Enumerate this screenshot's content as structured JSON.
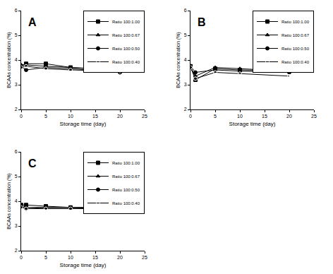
{
  "chart_data": [
    {
      "type": "line",
      "title": "A",
      "x_label": "Storage time (day)",
      "y_label": "BCAAs concentration (%)",
      "x": [
        0,
        1,
        5,
        10,
        20
      ],
      "series": [
        {
          "name": "Ratio 100:1.00",
          "color": "#000000",
          "marker": "square",
          "values": [
            3.75,
            3.85,
            3.85,
            3.7,
            3.55
          ]
        },
        {
          "name": "Ratio 100:0.67",
          "color": "#000000",
          "marker": "triangle-up",
          "values": [
            3.8,
            3.8,
            3.75,
            3.7,
            3.6
          ]
        },
        {
          "name": "Ratio 100:0.50",
          "color": "#000000",
          "marker": "circle",
          "values": [
            3.75,
            3.6,
            3.7,
            3.65,
            3.5
          ]
        },
        {
          "name": "Ratio 100:0.40",
          "color": "#000000",
          "marker": "circle-open",
          "values": [
            3.7,
            3.75,
            3.65,
            3.6,
            3.55
          ]
        }
      ],
      "xlim": [
        0,
        25
      ],
      "xticks": [
        0,
        5,
        10,
        15,
        20,
        25
      ],
      "ylim": [
        2,
        6
      ],
      "yticks": [
        2,
        3,
        4,
        5,
        6
      ],
      "grid": false,
      "legend": "upper right"
    },
    {
      "type": "line",
      "title": "B",
      "x_label": "Storage time (day)",
      "y_label": "BCAAs concentration (%)",
      "x": [
        0,
        1,
        5,
        10,
        20
      ],
      "series": [
        {
          "name": "Ratio 100:1.00",
          "color": "#000000",
          "marker": "square",
          "values": [
            3.75,
            3.2,
            3.65,
            3.6,
            3.55
          ]
        },
        {
          "name": "Ratio 100:0.67",
          "color": "#000000",
          "marker": "triangle-up",
          "values": [
            3.7,
            3.35,
            3.7,
            3.65,
            3.55
          ]
        },
        {
          "name": "Ratio 100:0.50",
          "color": "#000000",
          "marker": "circle",
          "values": [
            3.75,
            3.5,
            3.6,
            3.55,
            3.5
          ]
        },
        {
          "name": "Ratio 100:0.40",
          "color": "#000000",
          "marker": "circle-open",
          "values": [
            3.7,
            3.25,
            3.5,
            3.45,
            3.35
          ]
        }
      ],
      "xlim": [
        0,
        25
      ],
      "xticks": [
        0,
        5,
        10,
        15,
        20,
        25
      ],
      "ylim": [
        2,
        6
      ],
      "yticks": [
        2,
        3,
        4,
        5,
        6
      ],
      "grid": false,
      "legend": "upper right"
    },
    {
      "type": "line",
      "title": "C",
      "x_label": "Storage time (day)",
      "y_label": "BCAAs concentration (%)",
      "x": [
        0,
        1,
        5,
        10,
        20
      ],
      "series": [
        {
          "name": "Ratio 100:1.00",
          "color": "#000000",
          "marker": "square",
          "values": [
            3.85,
            3.85,
            3.8,
            3.75,
            3.75
          ]
        },
        {
          "name": "Ratio 100:0.67",
          "color": "#000000",
          "marker": "triangle-up",
          "values": [
            3.8,
            3.75,
            3.75,
            3.75,
            3.7
          ]
        },
        {
          "name": "Ratio 100:0.50",
          "color": "#000000",
          "marker": "circle",
          "values": [
            3.8,
            3.7,
            3.75,
            3.75,
            3.7
          ]
        },
        {
          "name": "Ratio 100:0.40",
          "color": "#000000",
          "marker": "circle-open",
          "values": [
            3.75,
            3.7,
            3.7,
            3.7,
            3.7
          ]
        }
      ],
      "xlim": [
        0,
        25
      ],
      "xticks": [
        0,
        5,
        10,
        15,
        20,
        25
      ],
      "ylim": [
        2,
        6
      ],
      "yticks": [
        2,
        3,
        4,
        5,
        6
      ],
      "grid": false,
      "legend": "upper right"
    }
  ]
}
